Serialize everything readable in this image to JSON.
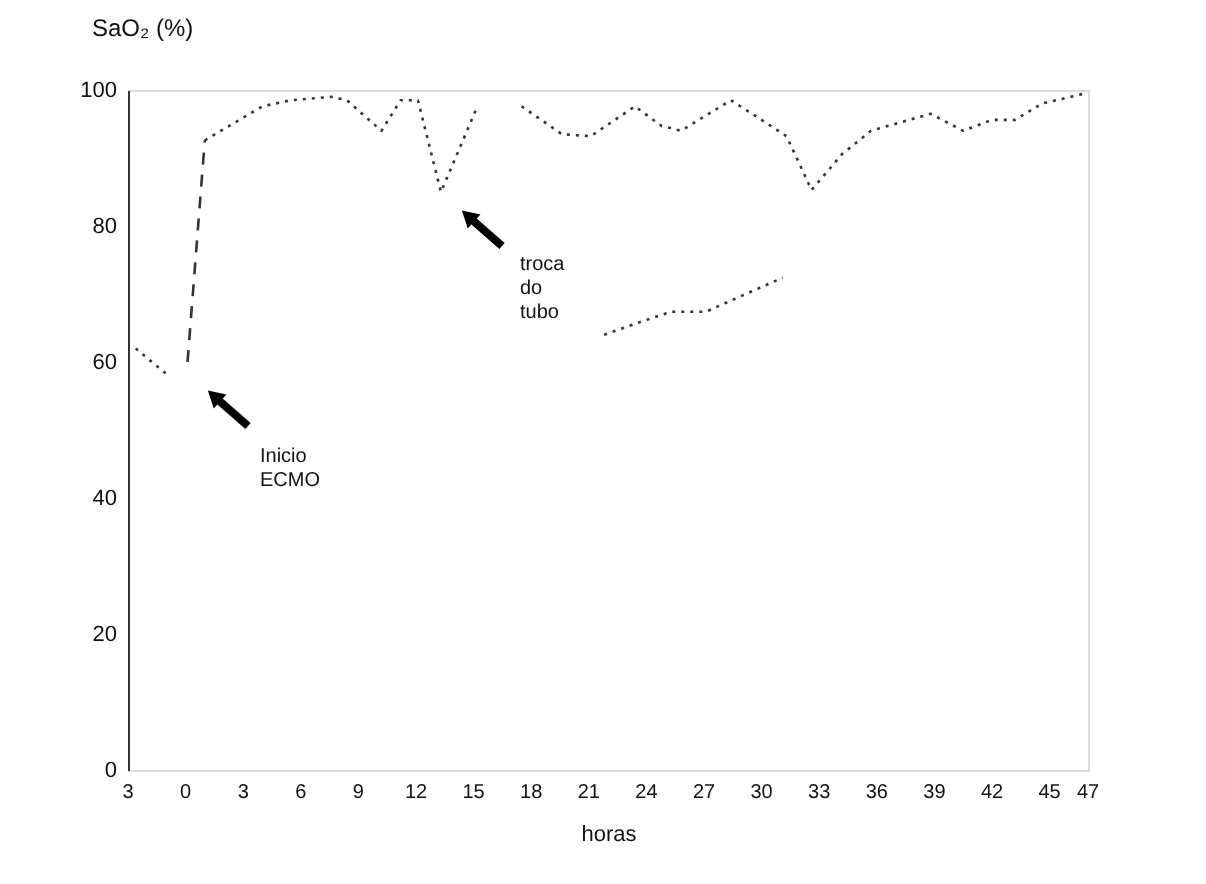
{
  "chart_data": {
    "type": "line",
    "title": "SaO₂ (%)",
    "xlabel": "horas",
    "xlim": [
      -3,
      47
    ],
    "ylim": [
      0,
      100
    ],
    "xticks": [
      {
        "value": -3,
        "label": "3"
      },
      0,
      3,
      6,
      9,
      12,
      15,
      18,
      21,
      24,
      27,
      30,
      33,
      36,
      39,
      42,
      45,
      47
    ],
    "yticks": [
      0,
      20,
      40,
      60,
      80,
      100
    ],
    "grid": false,
    "legend": false,
    "marker": "none",
    "series": [
      {
        "color": "#333333",
        "line_style": "dotted",
        "x": [
          -2.6,
          -0.9
        ],
        "values": [
          62,
          58
        ]
      },
      {
        "color": "#333333",
        "line_style": "dashed",
        "x": [
          0.1,
          1
        ],
        "values": [
          60,
          92.6
        ]
      },
      {
        "color": "#333333",
        "line_style": "dotted",
        "x": [
          1,
          4,
          5.5,
          7.6,
          8.4,
          10.2,
          11.2,
          12.1,
          13.3,
          15.2,
          16.3,
          17.5,
          19.6,
          21.1,
          23.4,
          24.8,
          25.8,
          28.4,
          30,
          31.3,
          32.6,
          34.2,
          35.7,
          38.8,
          40.5,
          42,
          43.2,
          44.6,
          46.7
        ],
        "values": [
          92.6,
          97.6,
          98.5,
          99,
          98.5,
          94,
          98.5,
          98.5,
          85,
          97.6,
          null,
          97.6,
          93.5,
          93.2,
          97.6,
          94.7,
          94,
          98.5,
          95.6,
          93.2,
          85.3,
          90.6,
          94,
          96.5,
          94,
          95.6,
          95.6,
          98,
          99.4
        ]
      },
      {
        "color": "#333333",
        "line_style": "dotted",
        "x": [
          21.8,
          23.8,
          25.3,
          27.1,
          31.1
        ],
        "values": [
          64,
          66,
          67.4,
          67.4,
          72.4
        ]
      }
    ],
    "annotations": [
      "Inicio ECMO",
      "troca do tubo"
    ]
  }
}
